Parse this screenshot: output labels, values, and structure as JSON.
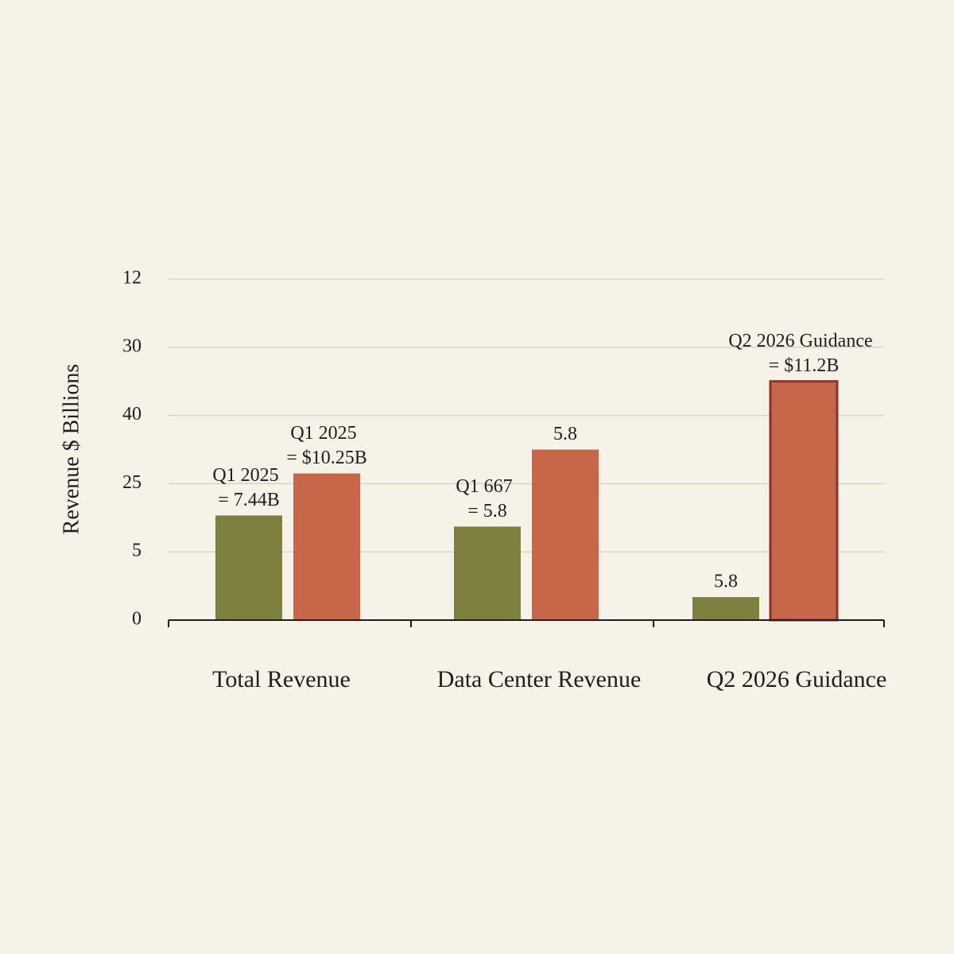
{
  "chart_data": {
    "type": "bar",
    "y_label": "Revenue $ Billions",
    "categories": [
      "Total Revenue",
      "Data Center Revenue",
      "Q2 2026 Guidance"
    ],
    "series": [
      {
        "color": "#7f8040",
        "values": [
          3.68,
          3.29,
          0.81
        ],
        "annotations": [
          [
            "Q1 2025",
            "= 7.44B"
          ],
          [
            "Q1 667",
            "= 5.8"
          ],
          [
            "5.8"
          ]
        ]
      },
      {
        "color": "#c8664a",
        "values": [
          5.16,
          6.0,
          8.4
        ],
        "annotations": [
          [
            "Q1 2025",
            "= $10.25B"
          ],
          [
            "5.8"
          ],
          [
            "Q2 2026 Guidance",
            "= $11.2B"
          ]
        ]
      }
    ],
    "highlight": {
      "stroke": "#8b3526"
    },
    "ylim": [
      0,
      12
    ],
    "yticks": [
      0,
      {
        "value": 2.4,
        "label": "5"
      },
      {
        "value": 4.8,
        "label": "25"
      },
      {
        "value": 7.2,
        "label": "40"
      },
      {
        "value": 9.6,
        "label": "30"
      },
      12
    ],
    "grid": true
  }
}
